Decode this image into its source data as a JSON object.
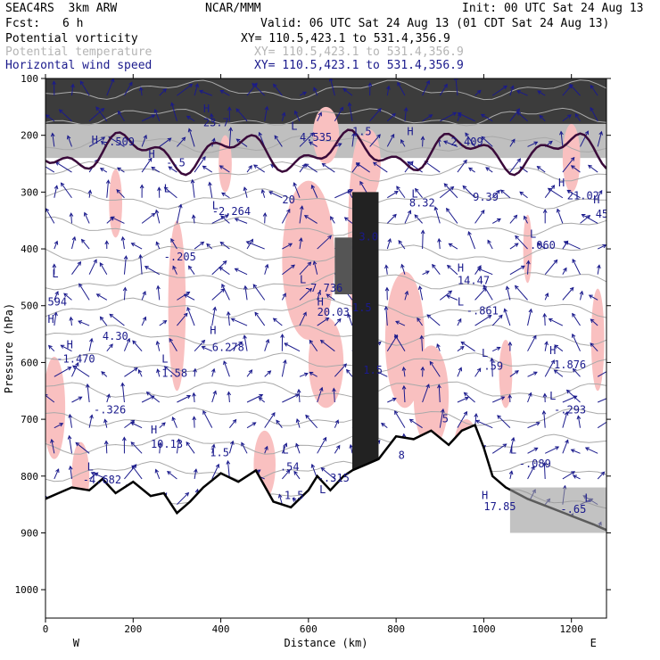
{
  "header": {
    "model": "SEAC4RS  3km ARW",
    "org": "NCAR/MMM",
    "init": "Init: 00 UTC Sat 24 Aug 13",
    "fcst_label": "Fcst:",
    "fcst_value": "6 h",
    "valid": "Valid: 06 UTC Sat 24 Aug 13 (01 CDT Sat 24 Aug 13)"
  },
  "fields": [
    {
      "name": "Potential vorticity",
      "xy": "XY= 110.5,423.1 to 531.4,356.9",
      "color": "#000000"
    },
    {
      "name": "Potential temperature",
      "xy": "XY= 110.5,423.1 to 531.4,356.9",
      "color": "#b4b4b4"
    },
    {
      "name": "Horizontal wind speed",
      "xy": "XY= 110.5,423.1 to 531.4,356.9",
      "color": "#1a1a8c"
    }
  ],
  "chart_data": {
    "type": "cross-section",
    "xlabel": "Distance (km)",
    "ylabel": "Pressure (hPa)",
    "x_left_label": "W",
    "x_right_label": "E",
    "xlim": [
      0,
      1280
    ],
    "ylim": [
      1050,
      100
    ],
    "x_ticks": [
      0,
      200,
      400,
      600,
      800,
      1000,
      1200
    ],
    "y_ticks": [
      100,
      200,
      300,
      400,
      500,
      600,
      700,
      800,
      900,
      1000
    ],
    "colors": {
      "pv_fill": "#f9c0c0",
      "pv_contour": "#3a0a3a",
      "theta": "#a9a9a9",
      "wind": "#1a1a8c",
      "terrain": "#000000"
    },
    "terrain_surface": {
      "distance_km": [
        0,
        30,
        60,
        100,
        130,
        160,
        200,
        240,
        270,
        300,
        330,
        360,
        400,
        440,
        480,
        520,
        560,
        600,
        620,
        650,
        680,
        700,
        730,
        760,
        800,
        840,
        880,
        920,
        950,
        980,
        1000,
        1020,
        1050,
        1100,
        1150,
        1200,
        1250,
        1280
      ],
      "pressure_hpa": [
        840,
        830,
        820,
        825,
        805,
        830,
        810,
        835,
        830,
        865,
        845,
        820,
        795,
        810,
        790,
        845,
        855,
        825,
        800,
        825,
        800,
        790,
        780,
        770,
        730,
        735,
        720,
        745,
        720,
        710,
        750,
        800,
        820,
        840,
        855,
        870,
        885,
        895
      ]
    },
    "labels": [
      {
        "text": "H",
        "x": 5,
        "y": 530
      },
      {
        "text": "L",
        "x": 15,
        "y": 450
      },
      {
        "text": "594",
        "x": 5,
        "y": 500
      },
      {
        "text": "H",
        "x": 48,
        "y": 575
      },
      {
        "text": "-1.470",
        "x": 25,
        "y": 600
      },
      {
        "text": "-.326",
        "x": 110,
        "y": 690
      },
      {
        "text": "L",
        "x": 95,
        "y": 790
      },
      {
        "text": "-4.682",
        "x": 85,
        "y": 813
      },
      {
        "text": "4.30",
        "x": 130,
        "y": 560
      },
      {
        "text": "H",
        "x": 235,
        "y": 240
      },
      {
        "text": "L",
        "x": 380,
        "y": 330
      },
      {
        "text": "L",
        "x": 270,
        "y": 300
      },
      {
        "text": "-2.264",
        "x": 380,
        "y": 340
      },
      {
        "text": "-.205",
        "x": 270,
        "y": 420
      },
      {
        "text": "H",
        "x": 375,
        "y": 550
      },
      {
        "text": "6.278",
        "x": 380,
        "y": 580
      },
      {
        "text": "L",
        "x": 265,
        "y": 600
      },
      {
        "text": "1.58",
        "x": 265,
        "y": 625
      },
      {
        "text": "H",
        "x": 240,
        "y": 725
      },
      {
        "text": "10.13",
        "x": 240,
        "y": 750
      },
      {
        "text": "1.5",
        "x": 375,
        "y": 765
      },
      {
        "text": "L",
        "x": 560,
        "y": 190
      },
      {
        "text": "4.535",
        "x": 580,
        "y": 210
      },
      {
        "text": "20",
        "x": 540,
        "y": 320
      },
      {
        "text": "L",
        "x": 580,
        "y": 460
      },
      {
        "text": "-7.736",
        "x": 590,
        "y": 475
      },
      {
        "text": "H",
        "x": 620,
        "y": 500
      },
      {
        "text": "20.03",
        "x": 620,
        "y": 518
      },
      {
        "text": "1.5",
        "x": 700,
        "y": 200
      },
      {
        "text": "1.5",
        "x": 700,
        "y": 510
      },
      {
        "text": "L",
        "x": 540,
        "y": 760
      },
      {
        "text": ".54",
        "x": 535,
        "y": 790
      },
      {
        "text": "-.315",
        "x": 620,
        "y": 810
      },
      {
        "text": "L",
        "x": 625,
        "y": 830
      },
      {
        "text": "1.5",
        "x": 545,
        "y": 840
      },
      {
        "text": "H",
        "x": 825,
        "y": 200
      },
      {
        "text": "2.409",
        "x": 925,
        "y": 218
      },
      {
        "text": "8.32",
        "x": 830,
        "y": 325
      },
      {
        "text": "L",
        "x": 835,
        "y": 310
      },
      {
        "text": "9.39",
        "x": 975,
        "y": 315
      },
      {
        "text": "H",
        "x": 940,
        "y": 440
      },
      {
        "text": "14.47",
        "x": 940,
        "y": 462
      },
      {
        "text": "L",
        "x": 940,
        "y": 500
      },
      {
        "text": "-.861",
        "x": 960,
        "y": 515
      },
      {
        "text": "L",
        "x": 995,
        "y": 590
      },
      {
        "text": ".59",
        "x": 1000,
        "y": 613
      },
      {
        "text": "5",
        "x": 905,
        "y": 705
      },
      {
        "text": "8",
        "x": 805,
        "y": 770
      },
      {
        "text": "H",
        "x": 1170,
        "y": 290
      },
      {
        "text": "21.02",
        "x": 1190,
        "y": 313
      },
      {
        "text": "H",
        "x": 1250,
        "y": 320
      },
      {
        "text": "45",
        "x": 1255,
        "y": 345
      },
      {
        "text": "L",
        "x": 1105,
        "y": 380
      },
      {
        "text": ".060",
        "x": 1105,
        "y": 400
      },
      {
        "text": "H",
        "x": 1150,
        "y": 585
      },
      {
        "text": "1.876",
        "x": 1160,
        "y": 610
      },
      {
        "text": "L",
        "x": 1150,
        "y": 665
      },
      {
        "text": "-.293",
        "x": 1160,
        "y": 690
      },
      {
        "text": "L",
        "x": 1060,
        "y": 760
      },
      {
        "text": "-.089",
        "x": 1080,
        "y": 785
      },
      {
        "text": "H",
        "x": 995,
        "y": 840
      },
      {
        "text": "17.85",
        "x": 1000,
        "y": 860
      },
      {
        "text": "-.65",
        "x": 1175,
        "y": 865
      },
      {
        "text": "L",
        "x": 1230,
        "y": 845
      },
      {
        "text": "H",
        "x": 105,
        "y": 215
      },
      {
        "text": "-.509",
        "x": 130,
        "y": 218
      },
      {
        "text": "-.5",
        "x": 275,
        "y": 255
      },
      {
        "text": "H",
        "x": 360,
        "y": 160
      },
      {
        "text": "23.7",
        "x": 360,
        "y": 184
      },
      {
        "text": "3.0",
        "x": 715,
        "y": 385
      },
      {
        "text": "1.5",
        "x": 725,
        "y": 620
      }
    ]
  }
}
